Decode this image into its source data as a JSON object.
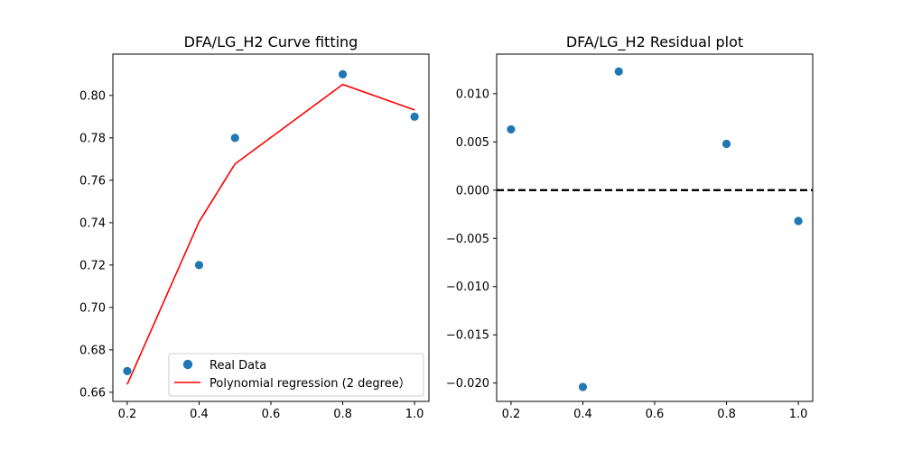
{
  "chart_data": [
    {
      "type": "scatter",
      "title": "DFA/LG_H2 Curve fitting",
      "xlabel": "",
      "ylabel": "",
      "xlim": [
        0.16,
        1.04
      ],
      "ylim": [
        0.6557,
        0.8195
      ],
      "x_ticks": [
        0.2,
        0.4,
        0.6,
        0.8,
        1.0
      ],
      "x_tick_labels": [
        "0.2",
        "0.4",
        "0.6",
        "0.8",
        "1.0"
      ],
      "y_ticks": [
        0.66,
        0.68,
        0.7,
        0.72,
        0.74,
        0.76,
        0.78,
        0.8
      ],
      "y_tick_labels": [
        "0.66",
        "0.68",
        "0.70",
        "0.72",
        "0.74",
        "0.76",
        "0.78",
        "0.80"
      ],
      "grid": false,
      "legend_position": "lower-right",
      "series": [
        {
          "name": "Real Data",
          "kind": "scatter",
          "color": "#1f77b4",
          "x": [
            0.2,
            0.4,
            0.5,
            0.8,
            1.0
          ],
          "y": [
            0.67,
            0.72,
            0.78,
            0.81,
            0.79
          ]
        },
        {
          "name": "Polynomial regression (2 degree）",
          "kind": "line",
          "color": "#ff0000",
          "x": [
            0.2,
            0.4,
            0.5,
            0.8,
            1.0
          ],
          "y": [
            0.6637,
            0.7404,
            0.7677,
            0.8052,
            0.7932
          ]
        }
      ]
    },
    {
      "type": "scatter",
      "title": "DFA/LG_H2 Residual plot",
      "xlabel": "",
      "ylabel": "",
      "xlim": [
        0.16,
        1.04
      ],
      "ylim": [
        -0.0219,
        0.0141
      ],
      "x_ticks": [
        0.2,
        0.4,
        0.6,
        0.8,
        1.0
      ],
      "x_tick_labels": [
        "0.2",
        "0.4",
        "0.6",
        "0.8",
        "1.0"
      ],
      "y_ticks": [
        -0.02,
        -0.015,
        -0.01,
        -0.005,
        0.0,
        0.005,
        0.01
      ],
      "y_tick_labels": [
        "−0.020",
        "−0.015",
        "−0.010",
        "−0.005",
        "0.000",
        "0.005",
        "0.010"
      ],
      "grid": false,
      "reference_line": {
        "y": 0,
        "style": "dashed",
        "color": "#000000"
      },
      "series": [
        {
          "kind": "scatter",
          "color": "#1f77b4",
          "x": [
            0.2,
            0.4,
            0.5,
            0.8,
            1.0
          ],
          "y": [
            0.0063,
            -0.0204,
            0.0123,
            0.0048,
            -0.0032
          ]
        }
      ]
    }
  ]
}
